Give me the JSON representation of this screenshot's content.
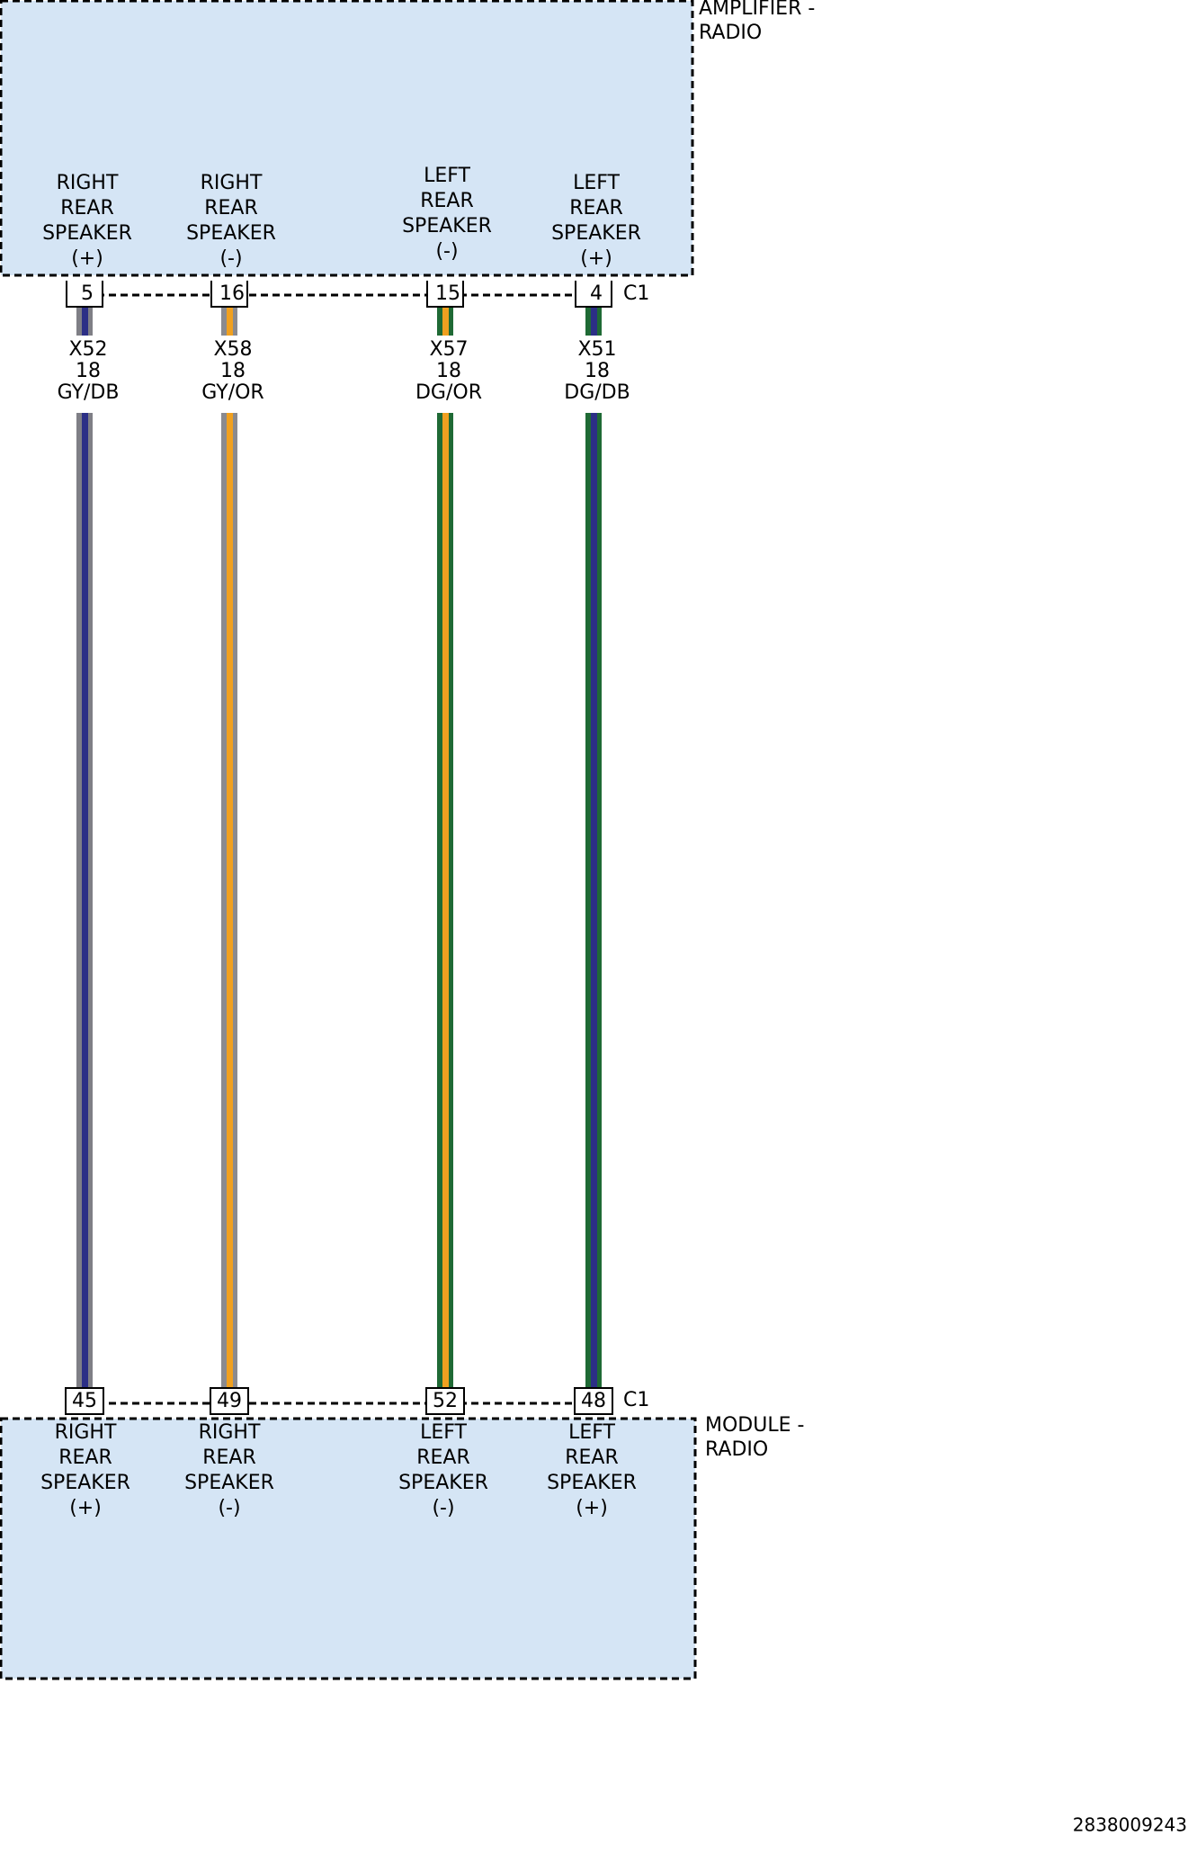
{
  "top_component": {
    "name": [
      "AMPLIFIER -",
      "RADIO"
    ],
    "connector": "C1",
    "pins": [
      {
        "number": "5",
        "label": [
          "RIGHT",
          "REAR",
          "SPEAKER",
          "(+)"
        ]
      },
      {
        "number": "16",
        "label": [
          "RIGHT",
          "REAR",
          "SPEAKER",
          "(-)"
        ]
      },
      {
        "number": "15",
        "label": [
          "LEFT",
          "REAR",
          "SPEAKER",
          "(-)"
        ]
      },
      {
        "number": "4",
        "label": [
          "LEFT",
          "REAR",
          "SPEAKER",
          "(+)"
        ]
      }
    ]
  },
  "wires": [
    {
      "circuit": "X52",
      "gauge": "18",
      "color_code": "GY/DB",
      "base_color": "#7f7f86",
      "stripe_color": "#2c2f86"
    },
    {
      "circuit": "X58",
      "gauge": "18",
      "color_code": "GY/OR",
      "base_color": "#8a8a8f",
      "stripe_color": "#f0a020"
    },
    {
      "circuit": "X57",
      "gauge": "18",
      "color_code": "DG/OR",
      "base_color": "#1f6a35",
      "stripe_color": "#f0a020"
    },
    {
      "circuit": "X51",
      "gauge": "18",
      "color_code": "DG/DB",
      "base_color": "#1f6a35",
      "stripe_color": "#2c2f86"
    }
  ],
  "bottom_component": {
    "name": [
      "MODULE -",
      "RADIO"
    ],
    "connector": "C1",
    "pins": [
      {
        "number": "45",
        "label": [
          "RIGHT",
          "REAR",
          "SPEAKER",
          "(+)"
        ]
      },
      {
        "number": "49",
        "label": [
          "RIGHT",
          "REAR",
          "SPEAKER",
          "(-)"
        ]
      },
      {
        "number": "52",
        "label": [
          "LEFT",
          "REAR",
          "SPEAKER",
          "(-)"
        ]
      },
      {
        "number": "48",
        "label": [
          "LEFT",
          "REAR",
          "SPEAKER",
          "(+)"
        ]
      }
    ]
  },
  "footer": "2838009243"
}
